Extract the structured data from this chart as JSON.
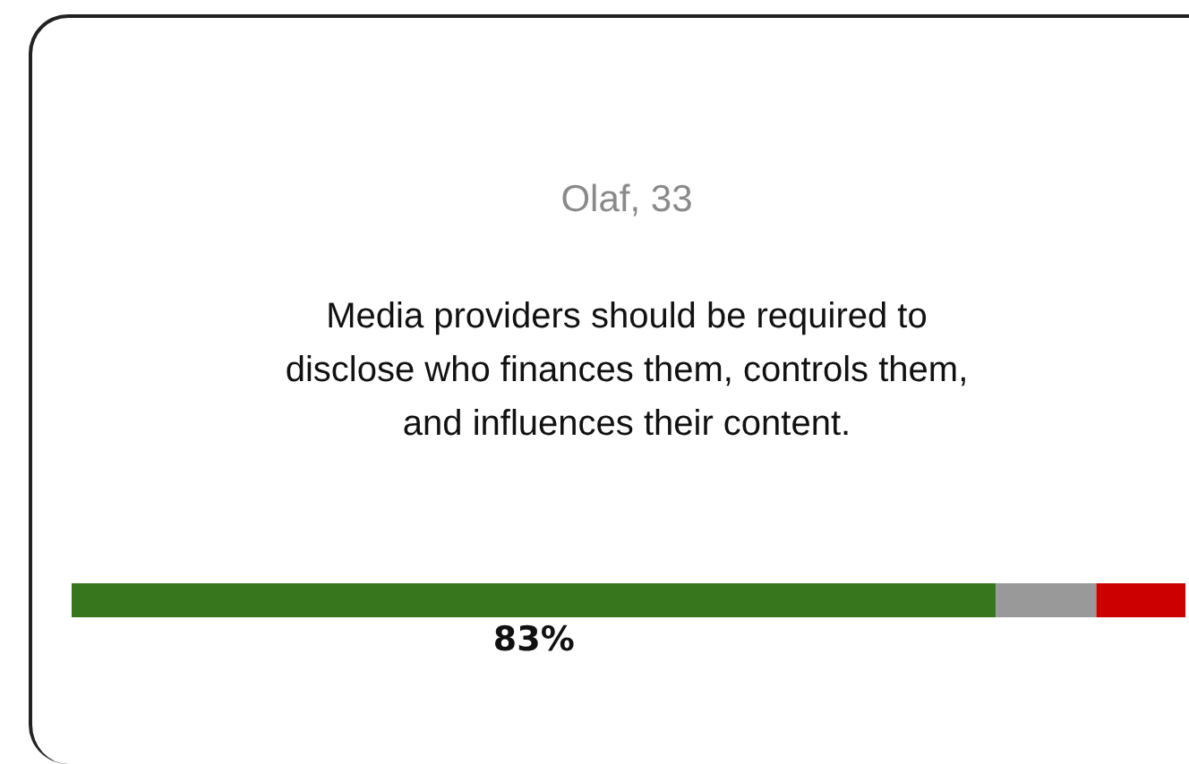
{
  "chart_data": {
    "type": "bar",
    "orientation": "horizontal",
    "stacked": true,
    "subtitle": "Olaf, 33",
    "title": "Media providers should be required to disclose who finances them, controls them, and influences their content.",
    "categories": [
      null
    ],
    "tick_labels": false,
    "series": [
      {
        "color": "#38761d",
        "values": [
          83
        ],
        "value_labels": [
          "83%"
        ]
      },
      {
        "color": "#999999",
        "values": [
          9
        ],
        "value_labels": [
          null
        ]
      },
      {
        "color": "#cc0000",
        "values": [
          8
        ],
        "value_labels": [
          null
        ]
      }
    ]
  }
}
